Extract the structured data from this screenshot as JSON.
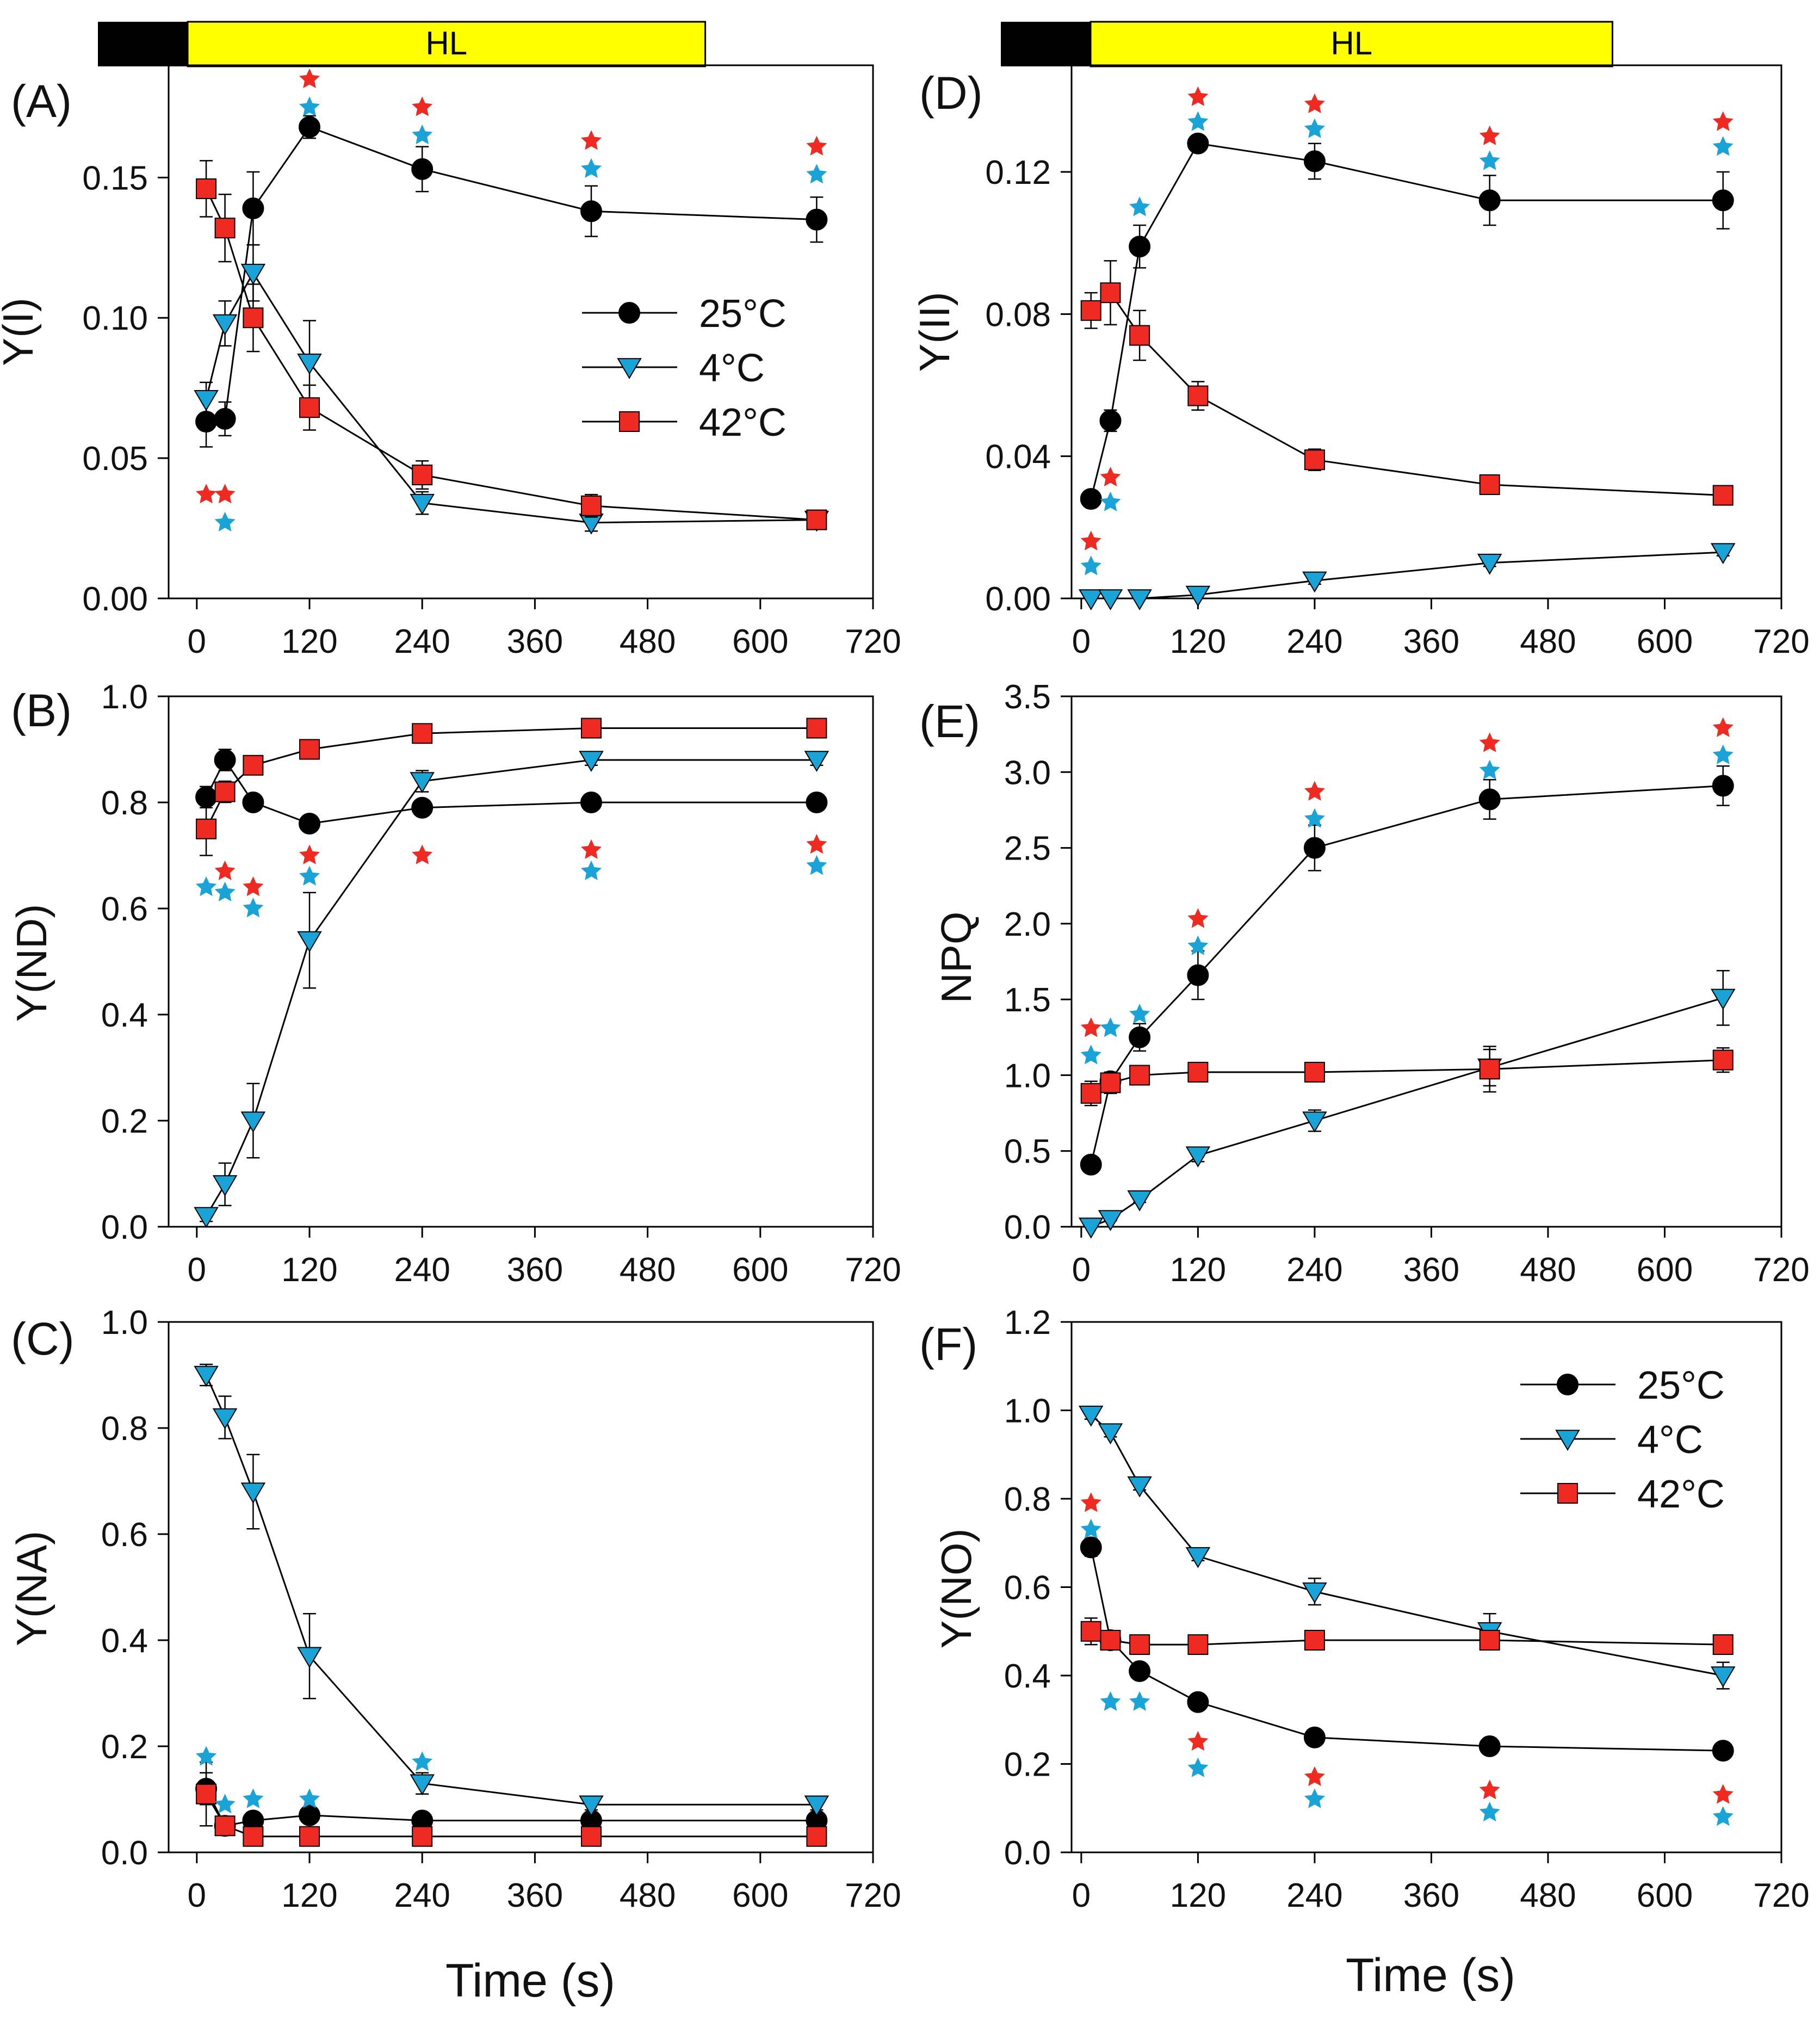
{
  "figure": {
    "xlabel": "Time (s)",
    "light_bar_label": "HL",
    "colors": {
      "s25": "#000000",
      "s4": "#1aa3d6",
      "s42": "#ef2a23",
      "light_bar_dark": "#000000",
      "light_bar_light": "#ffff00",
      "sig_red": "#ef2a23",
      "sig_blue": "#1aa3d6"
    }
  },
  "chart_data": [
    {
      "id": "A",
      "panel_label": "(A)",
      "type": "line",
      "ylabel": "Y(I)",
      "xlim": [
        -30,
        720
      ],
      "ylim": [
        0,
        0.19
      ],
      "xticks": [
        0,
        120,
        240,
        360,
        480,
        600,
        720
      ],
      "xtick_labels": [
        "0",
        "120",
        "240",
        "360",
        "480",
        "600",
        "720"
      ],
      "yticks": [
        0,
        0.05,
        0.1,
        0.15
      ],
      "ytick_labels": [
        "0.00",
        "0.05",
        "0.10",
        "0.15"
      ],
      "x": [
        10,
        30,
        60,
        120,
        240,
        420,
        660
      ],
      "series": [
        {
          "name": "25°C",
          "marker": "circle",
          "values": [
            0.063,
            0.064,
            0.139,
            0.168,
            0.153,
            0.138,
            0.135
          ],
          "errors": [
            0.009,
            0.006,
            0.013,
            0.004,
            0.008,
            0.009,
            0.008
          ]
        },
        {
          "name": "4°C",
          "marker": "triangle-down",
          "values": [
            0.071,
            0.098,
            0.116,
            0.084,
            0.034,
            0.027,
            0.028
          ],
          "errors": [
            0.006,
            0.008,
            0.01,
            0.015,
            0.004,
            0.003,
            0.003
          ]
        },
        {
          "name": "42°C",
          "marker": "square",
          "values": [
            0.146,
            0.132,
            0.1,
            0.068,
            0.044,
            0.033,
            0.028
          ],
          "errors": [
            0.01,
            0.012,
            0.012,
            0.008,
            0.005,
            0.004,
            0.003
          ]
        }
      ],
      "legend": {
        "show": true,
        "position": "middle-right",
        "entries": [
          "25°C",
          "4°C",
          "42°C"
        ]
      },
      "sig_markers": [
        {
          "x": 10,
          "y": 0.037,
          "color": "red"
        },
        {
          "x": 30,
          "y": 0.037,
          "color": "red"
        },
        {
          "x": 30,
          "y": 0.027,
          "color": "blue"
        },
        {
          "x": 120,
          "y": 0.185,
          "color": "red"
        },
        {
          "x": 120,
          "y": 0.175,
          "color": "blue"
        },
        {
          "x": 240,
          "y": 0.175,
          "color": "red"
        },
        {
          "x": 240,
          "y": 0.165,
          "color": "blue"
        },
        {
          "x": 420,
          "y": 0.163,
          "color": "red"
        },
        {
          "x": 420,
          "y": 0.153,
          "color": "blue"
        },
        {
          "x": 660,
          "y": 0.161,
          "color": "red"
        },
        {
          "x": 660,
          "y": 0.151,
          "color": "blue"
        }
      ]
    },
    {
      "id": "D",
      "panel_label": "(D)",
      "type": "line",
      "ylabel": "Y(II)",
      "xlim": [
        -10,
        720
      ],
      "ylim": [
        0,
        0.15
      ],
      "xticks": [
        0,
        120,
        240,
        360,
        480,
        600,
        720
      ],
      "xtick_labels": [
        "0",
        "120",
        "240",
        "360",
        "480",
        "600",
        "720"
      ],
      "yticks": [
        0,
        0.04,
        0.08,
        0.12
      ],
      "ytick_labels": [
        "0.00",
        "0.04",
        "0.08",
        "0.12"
      ],
      "x": [
        10,
        30,
        60,
        120,
        240,
        420,
        660
      ],
      "series": [
        {
          "name": "25°C",
          "marker": "circle",
          "values": [
            0.028,
            0.05,
            0.099,
            0.128,
            0.123,
            0.112,
            0.112
          ],
          "errors": [
            0.002,
            0.003,
            0.006,
            0.002,
            0.005,
            0.007,
            0.008
          ]
        },
        {
          "name": "4°C",
          "marker": "triangle-down",
          "values": [
            0.0,
            0.0,
            0.0,
            0.001,
            0.005,
            0.01,
            0.013
          ],
          "errors": [
            0.0,
            0.0,
            0.0,
            0.001,
            0.001,
            0.001,
            0.001
          ]
        },
        {
          "name": "42°C",
          "marker": "square",
          "values": [
            0.081,
            0.086,
            0.074,
            0.057,
            0.039,
            0.032,
            0.029
          ],
          "errors": [
            0.005,
            0.009,
            0.007,
            0.004,
            0.003,
            0.002,
            0.002
          ]
        }
      ],
      "legend": {
        "show": false
      },
      "sig_markers": [
        {
          "x": 60,
          "y": 0.11,
          "color": "blue"
        },
        {
          "x": 10,
          "y": 0.016,
          "color": "red"
        },
        {
          "x": 10,
          "y": 0.009,
          "color": "blue"
        },
        {
          "x": 30,
          "y": 0.034,
          "color": "red"
        },
        {
          "x": 30,
          "y": 0.027,
          "color": "blue"
        },
        {
          "x": 120,
          "y": 0.141,
          "color": "red"
        },
        {
          "x": 120,
          "y": 0.134,
          "color": "blue"
        },
        {
          "x": 240,
          "y": 0.139,
          "color": "red"
        },
        {
          "x": 240,
          "y": 0.132,
          "color": "blue"
        },
        {
          "x": 420,
          "y": 0.13,
          "color": "red"
        },
        {
          "x": 420,
          "y": 0.123,
          "color": "blue"
        },
        {
          "x": 660,
          "y": 0.134,
          "color": "red"
        },
        {
          "x": 660,
          "y": 0.127,
          "color": "blue"
        }
      ]
    },
    {
      "id": "B",
      "panel_label": "(B)",
      "type": "line",
      "ylabel": "Y(ND)",
      "xlim": [
        -30,
        720
      ],
      "ylim": [
        0,
        1.0
      ],
      "xticks": [
        0,
        120,
        240,
        360,
        480,
        600,
        720
      ],
      "xtick_labels": [
        "0",
        "120",
        "240",
        "360",
        "480",
        "600",
        "720"
      ],
      "yticks": [
        0,
        0.2,
        0.4,
        0.6,
        0.8,
        1.0
      ],
      "ytick_labels": [
        "0.0",
        "0.2",
        "0.4",
        "0.6",
        "0.8",
        "1.0"
      ],
      "x": [
        10,
        30,
        60,
        120,
        240,
        420,
        660
      ],
      "series": [
        {
          "name": "25°C",
          "marker": "circle",
          "values": [
            0.81,
            0.88,
            0.8,
            0.76,
            0.79,
            0.8,
            0.8
          ],
          "errors": [
            0.02,
            0.02,
            0.01,
            0.01,
            0.01,
            0.01,
            0.01
          ]
        },
        {
          "name": "4°C",
          "marker": "triangle-down",
          "values": [
            0.02,
            0.08,
            0.2,
            0.54,
            0.84,
            0.88,
            0.88
          ],
          "errors": [
            0.01,
            0.04,
            0.07,
            0.09,
            0.02,
            0.01,
            0.01
          ]
        },
        {
          "name": "42°C",
          "marker": "square",
          "values": [
            0.75,
            0.82,
            0.87,
            0.9,
            0.93,
            0.94,
            0.94
          ],
          "errors": [
            0.05,
            0.02,
            0.01,
            0.01,
            0.01,
            0.01,
            0.01
          ]
        }
      ],
      "legend": {
        "show": false
      },
      "sig_markers": [
        {
          "x": 10,
          "y": 0.64,
          "color": "blue"
        },
        {
          "x": 30,
          "y": 0.67,
          "color": "red"
        },
        {
          "x": 30,
          "y": 0.63,
          "color": "blue"
        },
        {
          "x": 60,
          "y": 0.64,
          "color": "red"
        },
        {
          "x": 60,
          "y": 0.6,
          "color": "blue"
        },
        {
          "x": 120,
          "y": 0.7,
          "color": "red"
        },
        {
          "x": 120,
          "y": 0.66,
          "color": "blue"
        },
        {
          "x": 240,
          "y": 0.7,
          "color": "red"
        },
        {
          "x": 420,
          "y": 0.71,
          "color": "red"
        },
        {
          "x": 420,
          "y": 0.67,
          "color": "blue"
        },
        {
          "x": 660,
          "y": 0.72,
          "color": "red"
        },
        {
          "x": 660,
          "y": 0.68,
          "color": "blue"
        }
      ]
    },
    {
      "id": "E",
      "panel_label": "(E)",
      "type": "line",
      "ylabel": "NPQ",
      "xlim": [
        -10,
        720
      ],
      "ylim": [
        0,
        3.5
      ],
      "xticks": [
        0,
        120,
        240,
        360,
        480,
        600,
        720
      ],
      "xtick_labels": [
        "0",
        "120",
        "240",
        "360",
        "480",
        "600",
        "720"
      ],
      "yticks": [
        0,
        0.5,
        1.0,
        1.5,
        2.0,
        2.5,
        3.0,
        3.5
      ],
      "ytick_labels": [
        "0.0",
        "0.5",
        "1.0",
        "1.5",
        "2.0",
        "2.5",
        "3.0",
        "3.5"
      ],
      "x": [
        10,
        30,
        60,
        120,
        240,
        420,
        660
      ],
      "series": [
        {
          "name": "25°C",
          "marker": "circle",
          "values": [
            0.41,
            0.96,
            1.25,
            1.66,
            2.5,
            2.82,
            2.91
          ],
          "errors": [
            0.03,
            0.06,
            0.09,
            0.16,
            0.15,
            0.13,
            0.13
          ]
        },
        {
          "name": "4°C",
          "marker": "triangle-down",
          "values": [
            0.0,
            0.05,
            0.18,
            0.47,
            0.7,
            1.05,
            1.51
          ],
          "errors": [
            0.0,
            0.01,
            0.02,
            0.04,
            0.07,
            0.12,
            0.18
          ]
        },
        {
          "name": "42°C",
          "marker": "square",
          "values": [
            0.88,
            0.95,
            1.0,
            1.02,
            1.02,
            1.04,
            1.1
          ],
          "errors": [
            0.08,
            0.07,
            0.06,
            0.06,
            0.05,
            0.15,
            0.08
          ]
        }
      ],
      "legend": {
        "show": false
      },
      "sig_markers": [
        {
          "x": 10,
          "y": 1.31,
          "color": "red"
        },
        {
          "x": 10,
          "y": 1.13,
          "color": "blue"
        },
        {
          "x": 30,
          "y": 1.31,
          "color": "blue"
        },
        {
          "x": 60,
          "y": 1.4,
          "color": "blue"
        },
        {
          "x": 120,
          "y": 2.03,
          "color": "red"
        },
        {
          "x": 120,
          "y": 1.85,
          "color": "blue"
        },
        {
          "x": 240,
          "y": 2.87,
          "color": "red"
        },
        {
          "x": 240,
          "y": 2.69,
          "color": "blue"
        },
        {
          "x": 420,
          "y": 3.19,
          "color": "red"
        },
        {
          "x": 420,
          "y": 3.01,
          "color": "blue"
        },
        {
          "x": 660,
          "y": 3.29,
          "color": "red"
        },
        {
          "x": 660,
          "y": 3.11,
          "color": "blue"
        }
      ]
    },
    {
      "id": "C",
      "panel_label": "(C)",
      "type": "line",
      "ylabel": "Y(NA)",
      "xlim": [
        -30,
        720
      ],
      "ylim": [
        0,
        1.0
      ],
      "xticks": [
        0,
        120,
        240,
        360,
        480,
        600,
        720
      ],
      "xtick_labels": [
        "0",
        "120",
        "240",
        "360",
        "480",
        "600",
        "720"
      ],
      "yticks": [
        0,
        0.2,
        0.4,
        0.6,
        0.8,
        1.0
      ],
      "ytick_labels": [
        "0.0",
        "0.2",
        "0.4",
        "0.6",
        "0.8",
        "1.0"
      ],
      "x": [
        10,
        30,
        60,
        120,
        240,
        420,
        660
      ],
      "series": [
        {
          "name": "25°C",
          "marker": "circle",
          "values": [
            0.12,
            0.05,
            0.06,
            0.07,
            0.06,
            0.06,
            0.06
          ],
          "errors": [
            0.03,
            0.01,
            0.01,
            0.01,
            0.01,
            0.01,
            0.01
          ]
        },
        {
          "name": "4°C",
          "marker": "triangle-down",
          "values": [
            0.9,
            0.82,
            0.68,
            0.37,
            0.13,
            0.09,
            0.09
          ],
          "errors": [
            0.02,
            0.04,
            0.07,
            0.08,
            0.02,
            0.01,
            0.01
          ]
        },
        {
          "name": "42°C",
          "marker": "square",
          "values": [
            0.11,
            0.05,
            0.03,
            0.03,
            0.03,
            0.03,
            0.03
          ],
          "errors": [
            0.06,
            0.01,
            0.01,
            0.01,
            0.01,
            0.01,
            0.01
          ]
        }
      ],
      "legend": {
        "show": false
      },
      "sig_markers": [
        {
          "x": 10,
          "y": 0.18,
          "color": "blue"
        },
        {
          "x": 30,
          "y": 0.09,
          "color": "blue"
        },
        {
          "x": 60,
          "y": 0.1,
          "color": "blue"
        },
        {
          "x": 120,
          "y": 0.1,
          "color": "blue"
        },
        {
          "x": 240,
          "y": 0.17,
          "color": "blue"
        }
      ]
    },
    {
      "id": "F",
      "panel_label": "(F)",
      "type": "line",
      "ylabel": "Y(NO)",
      "xlim": [
        -10,
        720
      ],
      "ylim": [
        0,
        1.2
      ],
      "xticks": [
        0,
        120,
        240,
        360,
        480,
        600,
        720
      ],
      "xtick_labels": [
        "0",
        "120",
        "240",
        "360",
        "480",
        "600",
        "720"
      ],
      "yticks": [
        0,
        0.2,
        0.4,
        0.6,
        0.8,
        1.0,
        1.2
      ],
      "ytick_labels": [
        "0.0",
        "0.2",
        "0.4",
        "0.6",
        "0.8",
        "1.0",
        "1.2"
      ],
      "x": [
        10,
        30,
        60,
        120,
        240,
        420,
        660
      ],
      "series": [
        {
          "name": "25°C",
          "marker": "circle",
          "values": [
            0.69,
            0.48,
            0.41,
            0.34,
            0.26,
            0.24,
            0.23
          ],
          "errors": [
            0.02,
            0.02,
            0.01,
            0.01,
            0.01,
            0.01,
            0.01
          ]
        },
        {
          "name": "4°C",
          "marker": "triangle-down",
          "values": [
            0.99,
            0.95,
            0.83,
            0.67,
            0.59,
            0.5,
            0.4
          ],
          "errors": [
            0.01,
            0.01,
            0.01,
            0.01,
            0.03,
            0.04,
            0.03
          ]
        },
        {
          "name": "42°C",
          "marker": "square",
          "values": [
            0.5,
            0.48,
            0.47,
            0.47,
            0.48,
            0.48,
            0.47
          ],
          "errors": [
            0.03,
            0.02,
            0.01,
            0.01,
            0.01,
            0.02,
            0.01
          ]
        }
      ],
      "legend": {
        "show": true,
        "position": "top-right",
        "entries": [
          "25°C",
          "4°C",
          "42°C"
        ]
      },
      "sig_markers": [
        {
          "x": 10,
          "y": 0.79,
          "color": "red"
        },
        {
          "x": 10,
          "y": 0.73,
          "color": "blue"
        },
        {
          "x": 30,
          "y": 0.34,
          "color": "blue"
        },
        {
          "x": 60,
          "y": 0.34,
          "color": "blue"
        },
        {
          "x": 120,
          "y": 0.25,
          "color": "red"
        },
        {
          "x": 120,
          "y": 0.19,
          "color": "blue"
        },
        {
          "x": 240,
          "y": 0.17,
          "color": "red"
        },
        {
          "x": 240,
          "y": 0.12,
          "color": "blue"
        },
        {
          "x": 420,
          "y": 0.14,
          "color": "red"
        },
        {
          "x": 420,
          "y": 0.09,
          "color": "blue"
        },
        {
          "x": 660,
          "y": 0.13,
          "color": "red"
        },
        {
          "x": 660,
          "y": 0.08,
          "color": "blue"
        }
      ]
    }
  ]
}
